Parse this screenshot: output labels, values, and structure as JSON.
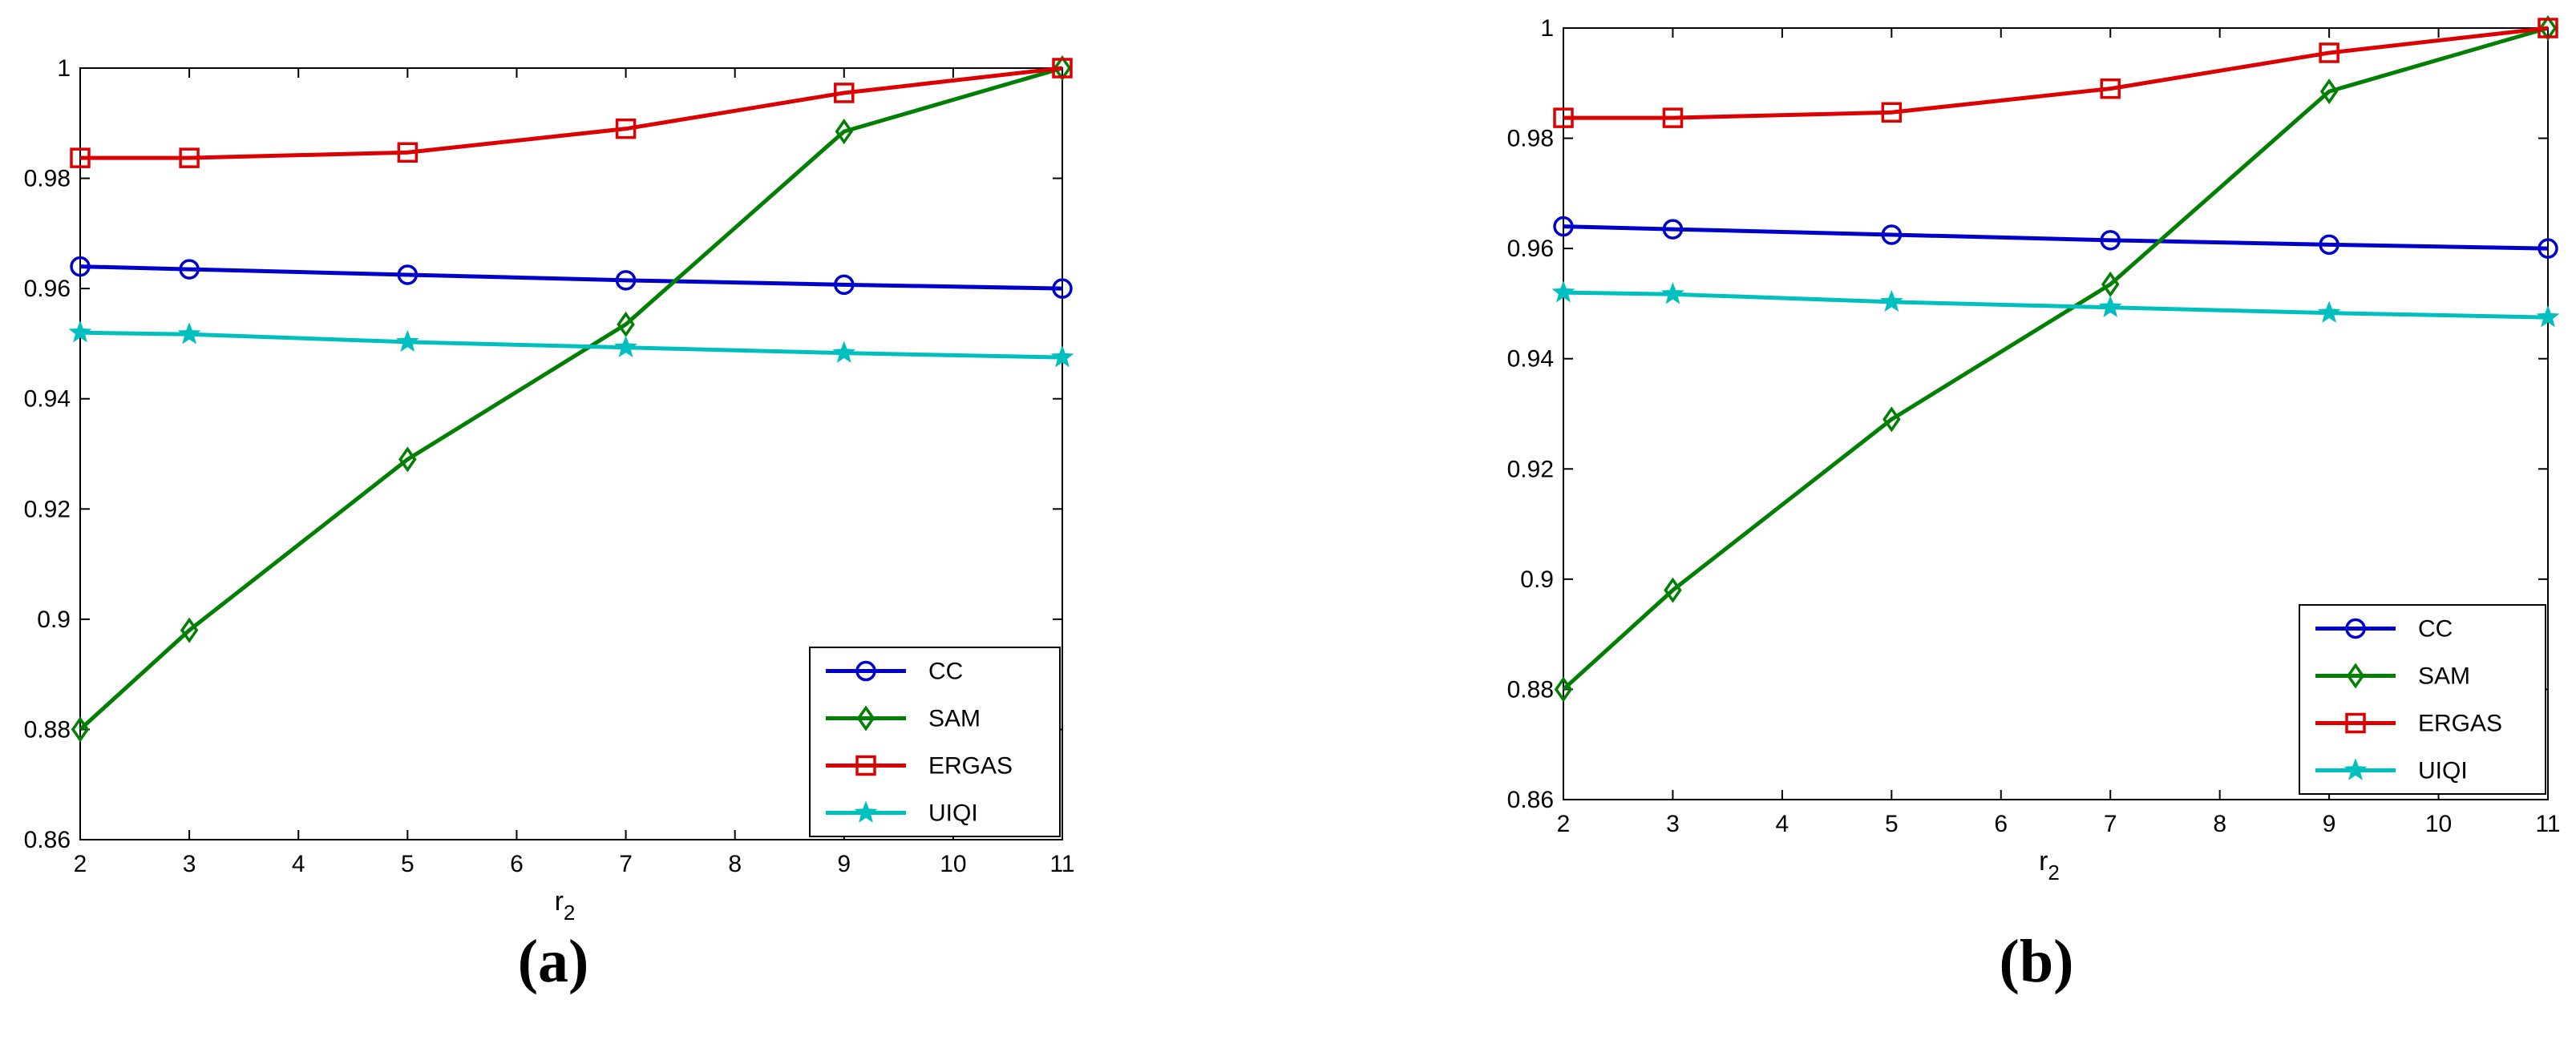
{
  "chart_data": [
    {
      "type": "line",
      "panel_label": "(a)",
      "title": "",
      "xlabel": "r",
      "xlabel_sub": "2",
      "ylabel": "",
      "xlim": [
        2,
        11
      ],
      "ylim": [
        0.86,
        1
      ],
      "xticks": [
        "2",
        "3",
        "4",
        "5",
        "6",
        "7",
        "8",
        "9",
        "10",
        "11"
      ],
      "yticks": [
        "0.86",
        "0.88",
        "0.9",
        "0.92",
        "0.94",
        "0.96",
        "0.98",
        "1"
      ],
      "grid": false,
      "legend_position": "bottom-right",
      "x": [
        2,
        3,
        5,
        7,
        9,
        11
      ],
      "series": [
        {
          "name": "CC",
          "color": "#0000cc",
          "marker": "circle",
          "values": [
            0.964,
            0.9635,
            0.9625,
            0.9615,
            0.9607,
            0.96
          ]
        },
        {
          "name": "SAM",
          "color": "#008000",
          "marker": "diamond",
          "values": [
            0.88,
            0.898,
            0.929,
            0.9535,
            0.9885,
            1.0
          ]
        },
        {
          "name": "ERGAS",
          "color": "#dd0000",
          "marker": "square",
          "values": [
            0.9837,
            0.9837,
            0.9847,
            0.989,
            0.9955,
            1.0
          ]
        },
        {
          "name": "UIQI",
          "color": "#00bfbf",
          "marker": "star",
          "values": [
            0.952,
            0.9517,
            0.9503,
            0.9493,
            0.9483,
            0.9475
          ]
        }
      ]
    },
    {
      "type": "line",
      "panel_label": "(b)",
      "title": "",
      "xlabel": "r",
      "xlabel_sub": "2",
      "ylabel": "",
      "xlim": [
        2,
        11
      ],
      "ylim": [
        0.86,
        1
      ],
      "xticks": [
        "2",
        "3",
        "4",
        "5",
        "6",
        "7",
        "8",
        "9",
        "10",
        "11"
      ],
      "yticks": [
        "0.86",
        "0.88",
        "0.9",
        "0.92",
        "0.94",
        "0.96",
        "0.98",
        "1"
      ],
      "grid": false,
      "legend_position": "bottom-right",
      "x": [
        2,
        3,
        5,
        7,
        9,
        11
      ],
      "series": [
        {
          "name": "CC",
          "color": "#0000cc",
          "marker": "circle",
          "values": [
            0.964,
            0.9635,
            0.9625,
            0.9615,
            0.9607,
            0.96
          ]
        },
        {
          "name": "SAM",
          "color": "#008000",
          "marker": "diamond",
          "values": [
            0.88,
            0.898,
            0.929,
            0.9535,
            0.9885,
            1.0
          ]
        },
        {
          "name": "ERGAS",
          "color": "#dd0000",
          "marker": "square",
          "values": [
            0.9837,
            0.9837,
            0.9847,
            0.989,
            0.9955,
            1.0
          ]
        },
        {
          "name": "UIQI",
          "color": "#00bfbf",
          "marker": "star",
          "values": [
            0.952,
            0.9517,
            0.9503,
            0.9493,
            0.9483,
            0.9475
          ]
        }
      ]
    }
  ]
}
